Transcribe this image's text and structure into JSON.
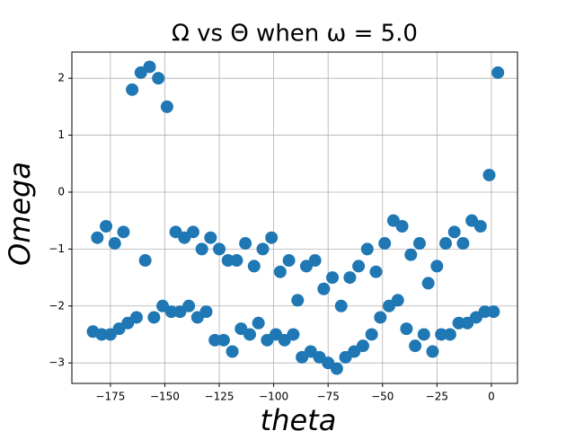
{
  "chart_data": {
    "type": "scatter",
    "title": "Ω vs Θ when ω = 5.0",
    "x_label": "theta",
    "y_label": "Omega",
    "color": "#1f77b4",
    "grid": true,
    "xlim": [
      -192.7,
      12
    ],
    "ylim": [
      -3.36,
      2.46
    ],
    "xticks": [
      {
        "value": -175,
        "label": "−175"
      },
      {
        "value": -150,
        "label": "−150"
      },
      {
        "value": -125,
        "label": "−125"
      },
      {
        "value": -100,
        "label": "−100"
      },
      {
        "value": -75,
        "label": "−75"
      },
      {
        "value": -50,
        "label": "−50"
      },
      {
        "value": -25,
        "label": "−25"
      },
      0
    ],
    "yticks": [
      {
        "value": -3,
        "label": "−3"
      },
      {
        "value": -2,
        "label": "−2"
      },
      {
        "value": -1,
        "label": "−1"
      },
      0,
      1,
      2
    ],
    "x": [
      -183,
      -181,
      -179,
      -177,
      -175,
      -173,
      -171,
      -169,
      -167,
      -165,
      -163,
      -161,
      -159,
      -157,
      -155,
      -153,
      -151,
      -149,
      -147,
      -145,
      -143,
      -141,
      -139,
      -137,
      -135,
      -133,
      -131,
      -129,
      -127,
      -125,
      -123,
      -121,
      -119,
      -117,
      -115,
      -113,
      -111,
      -109,
      -107,
      -105,
      -103,
      -101,
      -99,
      -97,
      -95,
      -93,
      -91,
      -89,
      -87,
      -85,
      -83,
      -81,
      -79,
      -77,
      -75,
      -73,
      -71,
      -69,
      -67,
      -65,
      -63,
      -61,
      -59,
      -57,
      -55,
      -53,
      -51,
      -49,
      -47,
      -45,
      -43,
      -41,
      -39,
      -37,
      -35,
      -33,
      -31,
      -29,
      -27,
      -25,
      -23,
      -21,
      -19,
      -17,
      -15,
      -13,
      -11,
      -9,
      -7,
      -5,
      -3,
      -1,
      1,
      3
    ],
    "values": [
      -2.45,
      -0.8,
      -2.5,
      -0.6,
      -2.5,
      -0.9,
      -2.4,
      -0.7,
      -2.3,
      1.8,
      -2.2,
      2.1,
      -1.2,
      2.2,
      -2.2,
      2.0,
      -2.0,
      1.5,
      -2.1,
      -0.7,
      -2.1,
      -0.8,
      -2.0,
      -0.7,
      -2.2,
      -1.0,
      -2.1,
      -0.8,
      -2.6,
      -1.0,
      -2.6,
      -1.2,
      -2.8,
      -1.2,
      -2.4,
      -0.9,
      -2.5,
      -1.3,
      -2.3,
      -1.0,
      -2.6,
      -0.8,
      -2.5,
      -1.4,
      -2.6,
      -1.2,
      -2.5,
      -1.9,
      -2.9,
      -1.3,
      -2.8,
      -1.2,
      -2.9,
      -1.7,
      -3.0,
      -1.5,
      -3.1,
      -2.0,
      -2.9,
      -1.5,
      -2.8,
      -1.3,
      -2.7,
      -1.0,
      -2.5,
      -1.4,
      -2.2,
      -0.9,
      -2.0,
      -0.5,
      -1.9,
      -0.6,
      -2.4,
      -1.1,
      -2.7,
      -0.9,
      -2.5,
      -1.6,
      -2.8,
      -1.3,
      -2.5,
      -0.9,
      -2.5,
      -0.7,
      -2.3,
      -0.9,
      -2.3,
      -0.5,
      -2.2,
      -0.6,
      -2.1,
      0.3,
      -2.1,
      2.1
    ]
  }
}
